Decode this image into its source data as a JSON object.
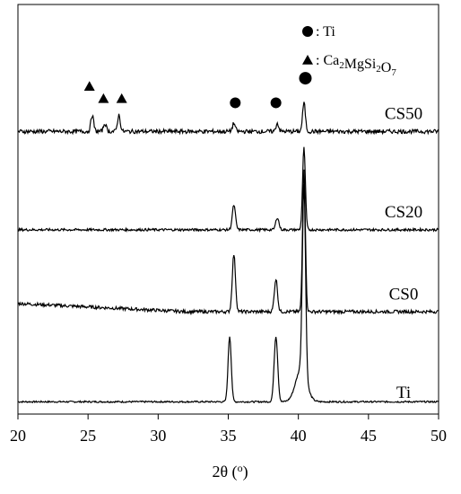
{
  "chart_data": {
    "type": "line",
    "xlabel": "2θ (o)",
    "ylabel": "",
    "xlim": [
      20,
      50
    ],
    "xticks": [
      20,
      25,
      30,
      35,
      40,
      45,
      50
    ],
    "grid": false,
    "legend": [
      {
        "marker": "circle",
        "label": ": Ti"
      },
      {
        "marker": "triangle",
        "label": ": Ca2MgSi2O7"
      }
    ],
    "series": [
      {
        "name": "Ti",
        "baseline": 0.03,
        "noise": 0.002,
        "peaks": [
          [
            35.1,
            0.16,
            0.16
          ],
          [
            38.4,
            0.16,
            0.18
          ],
          [
            40.2,
            0.08,
            0.55
          ],
          [
            40.4,
            0.46,
            0.16
          ]
        ]
      },
      {
        "name": "CS0",
        "baseline": 0.25,
        "noise": 0.004,
        "peaks": [
          [
            35.4,
            0.14,
            0.16
          ],
          [
            38.4,
            0.08,
            0.16
          ],
          [
            40.4,
            0.35,
            0.14
          ]
        ]
      },
      {
        "name": "CS20",
        "baseline": 0.45,
        "noise": 0.003,
        "peaks": [
          [
            35.4,
            0.06,
            0.16
          ],
          [
            38.5,
            0.03,
            0.16
          ],
          [
            40.4,
            0.2,
            0.14
          ]
        ]
      },
      {
        "name": "CS50",
        "baseline": 0.69,
        "noise": 0.005,
        "peaks": [
          [
            25.3,
            0.04,
            0.14
          ],
          [
            26.2,
            0.02,
            0.14
          ],
          [
            27.2,
            0.04,
            0.14
          ],
          [
            35.4,
            0.02,
            0.14
          ],
          [
            38.5,
            0.02,
            0.14
          ],
          [
            40.4,
            0.07,
            0.14
          ]
        ]
      }
    ],
    "markers": [
      {
        "type": "triangle",
        "x": 25.1,
        "y": 0.8
      },
      {
        "type": "triangle",
        "x": 26.1,
        "y": 0.77
      },
      {
        "type": "triangle",
        "x": 27.4,
        "y": 0.77
      },
      {
        "type": "circle",
        "x": 35.5,
        "y": 0.76
      },
      {
        "type": "circle",
        "x": 38.4,
        "y": 0.76
      },
      {
        "type": "circle",
        "x": 40.5,
        "y": 0.82
      }
    ]
  }
}
